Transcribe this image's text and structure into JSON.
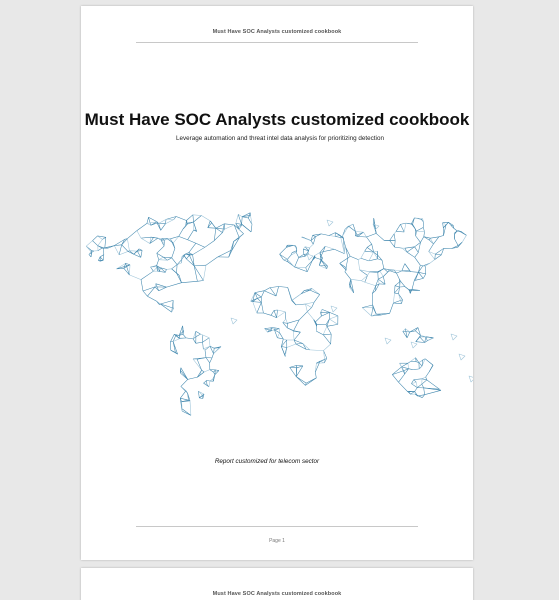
{
  "document": {
    "running_header": "Must Have SOC Analysts customized cookbook",
    "title": "Must Have SOC Analysts customized cookbook",
    "subtitle": "Leverage automation and threat intel data analysis for prioritizing detection",
    "sector_note": "Report customized for telecom sector",
    "page_label": "Page 1"
  },
  "colors": {
    "map_stroke": "#3f86ad",
    "map_stroke_light": "#9cc3d8",
    "page_background": "#ffffff",
    "viewer_background": "#e8e8e8"
  },
  "map": {
    "description_icon": "world-map-network-icon"
  }
}
